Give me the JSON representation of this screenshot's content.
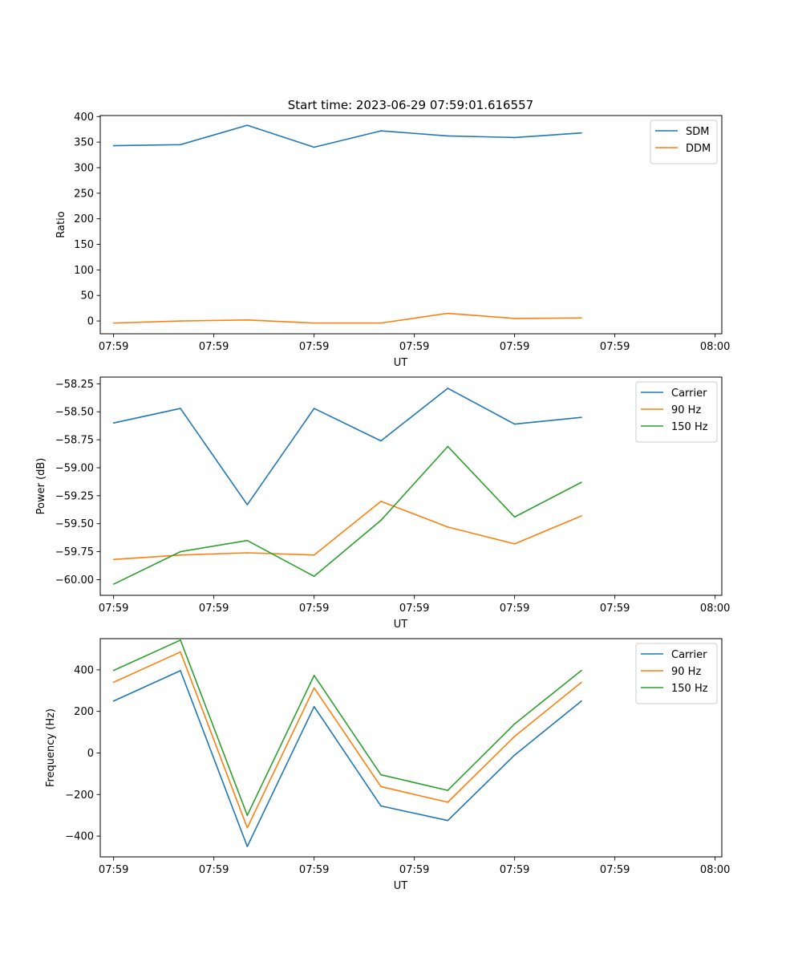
{
  "figure": {
    "title": "Start time: 2023-06-29 07:59:01.616557"
  },
  "colors": {
    "blue": "#1f77b4",
    "orange": "#ff7f0e",
    "green": "#2ca02c"
  },
  "chart_data": [
    {
      "type": "line",
      "title": "Start time: 2023-06-29 07:59:01.616557",
      "xlabel": "UT",
      "ylabel": "Ratio",
      "x": [
        1,
        2,
        3,
        4,
        5,
        6,
        7,
        8
      ],
      "xlim": [
        0.8,
        10.1
      ],
      "xticks": [
        1,
        2.5,
        4,
        5.5,
        7,
        8.5,
        10
      ],
      "xticklabels": [
        "07:59",
        "07:59",
        "07:59",
        "07:59",
        "07:59",
        "07:59",
        "08:00"
      ],
      "ylim": [
        -25,
        402
      ],
      "yticks": [
        0,
        50,
        100,
        150,
        200,
        250,
        300,
        350,
        400
      ],
      "yticklabels": [
        "0",
        "50",
        "100",
        "150",
        "200",
        "250",
        "300",
        "350",
        "400"
      ],
      "grid": false,
      "legend": "top-right",
      "series": [
        {
          "name": "SDM",
          "color": "#1f77b4",
          "values": [
            343,
            345,
            383,
            340,
            372,
            362,
            359,
            368
          ]
        },
        {
          "name": "DDM",
          "color": "#ff7f0e",
          "values": [
            -4,
            0,
            2,
            -4,
            -4,
            15,
            5,
            6
          ]
        }
      ]
    },
    {
      "type": "line",
      "xlabel": "UT",
      "ylabel": "Power (dB)",
      "x": [
        1,
        2,
        3,
        4,
        5,
        6,
        7,
        8
      ],
      "xlim": [
        0.8,
        10.1
      ],
      "xticks": [
        1,
        2.5,
        4,
        5.5,
        7,
        8.5,
        10
      ],
      "xticklabels": [
        "07:59",
        "07:59",
        "07:59",
        "07:59",
        "07:59",
        "07:59",
        "08:00"
      ],
      "ylim": [
        -60.14,
        -58.19
      ],
      "yticks": [
        -60.0,
        -59.75,
        -59.5,
        -59.25,
        -59.0,
        -58.75,
        -58.5,
        -58.25
      ],
      "yticklabels": [
        "−60.00",
        "−59.75",
        "−59.50",
        "−59.25",
        "−59.00",
        "−58.75",
        "−58.50",
        "−58.25"
      ],
      "grid": false,
      "legend": "top-right",
      "series": [
        {
          "name": "Carrier",
          "color": "#1f77b4",
          "values": [
            -58.6,
            -58.47,
            -59.33,
            -58.47,
            -58.76,
            -58.29,
            -58.61,
            -58.55
          ]
        },
        {
          "name": "90 Hz",
          "color": "#ff7f0e",
          "values": [
            -59.82,
            -59.78,
            -59.76,
            -59.78,
            -59.3,
            -59.53,
            -59.68,
            -59.43
          ]
        },
        {
          "name": "150 Hz",
          "color": "#2ca02c",
          "values": [
            -60.04,
            -59.75,
            -59.65,
            -59.97,
            -59.47,
            -58.81,
            -59.44,
            -59.13
          ]
        }
      ]
    },
    {
      "type": "line",
      "xlabel": "UT",
      "ylabel": "Frequency (Hz)",
      "x": [
        1,
        2,
        3,
        4,
        5,
        6,
        7,
        8
      ],
      "xlim": [
        0.8,
        10.1
      ],
      "xticks": [
        1,
        2.5,
        4,
        5.5,
        7,
        8.5,
        10
      ],
      "xticklabels": [
        "07:59",
        "07:59",
        "07:59",
        "07:59",
        "07:59",
        "07:59",
        "08:00"
      ],
      "ylim": [
        -500,
        550
      ],
      "yticks": [
        -400,
        -200,
        0,
        200,
        400
      ],
      "yticklabels": [
        "−400",
        "−200",
        "0",
        "200",
        "400"
      ],
      "grid": false,
      "legend": "top-right",
      "series": [
        {
          "name": "Carrier",
          "color": "#1f77b4",
          "values": [
            250,
            396,
            -450,
            223,
            -255,
            -325,
            -10,
            250
          ]
        },
        {
          "name": "90 Hz",
          "color": "#ff7f0e",
          "values": [
            340,
            486,
            -360,
            313,
            -162,
            -237,
            80,
            340
          ]
        },
        {
          "name": "150 Hz",
          "color": "#2ca02c",
          "values": [
            397,
            543,
            -300,
            373,
            -105,
            -180,
            140,
            397
          ]
        }
      ]
    }
  ]
}
